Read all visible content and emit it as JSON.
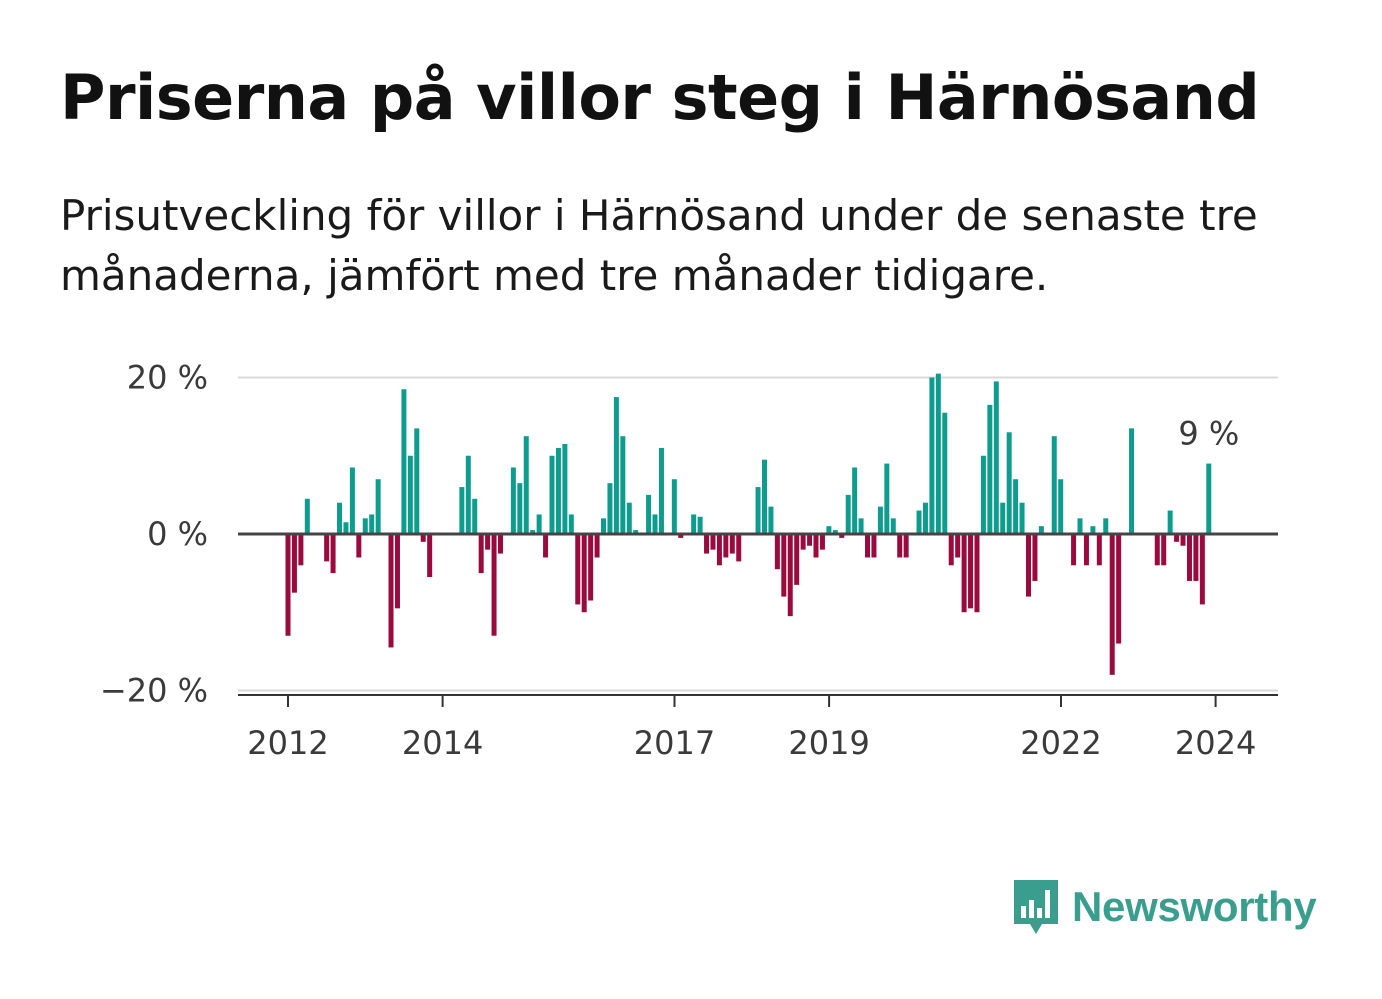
{
  "title": "Priserna på villor steg i Härnösand",
  "subtitle": "Prisutveckling för villor i Härnösand under de senaste tre månaderna, jämfört med tre månader tidigare.",
  "brand": {
    "name": "Newsworthy",
    "color": "#3a9e8e",
    "icon": "newsworthy-logo-icon"
  },
  "chart_data": {
    "type": "bar",
    "ylim": [
      -20,
      20
    ],
    "yticks": [
      {
        "value": 20,
        "label": "20 %"
      },
      {
        "value": 0,
        "label": "0 %"
      },
      {
        "value": -20,
        "label": "−20 %"
      }
    ],
    "xticks": [
      {
        "x": 2012.0,
        "label": "2012"
      },
      {
        "x": 2014.0,
        "label": "2014"
      },
      {
        "x": 2017.0,
        "label": "2017"
      },
      {
        "x": 2019.0,
        "label": "2019"
      },
      {
        "x": 2022.0,
        "label": "2022"
      },
      {
        "x": 2024.0,
        "label": "2024"
      }
    ],
    "x_start": 2012.0,
    "step": 0.0833,
    "colors": {
      "positive": "#0e9c8f",
      "negative": "#9b0a3d"
    },
    "last_value_label": "9 %",
    "values": [
      -13,
      -7.5,
      -4,
      4.5,
      0,
      0,
      -3.5,
      -5,
      4,
      1.5,
      8.5,
      -3,
      2,
      2.5,
      7,
      0,
      -14.5,
      -9.5,
      18.5,
      10,
      13.5,
      -1,
      -5.5,
      0,
      0,
      0,
      0,
      6,
      10,
      4.5,
      -5,
      -2,
      -13,
      -2.5,
      0,
      8.5,
      6.5,
      12.5,
      0.5,
      2.5,
      -3,
      10,
      11,
      11.5,
      2.5,
      -9,
      -10,
      -8.5,
      -3,
      2,
      6.5,
      17.5,
      12.5,
      4,
      0.5,
      0,
      5,
      2.5,
      11,
      0,
      7,
      -0.5,
      0,
      2.5,
      2.2,
      -2.5,
      -2,
      -4,
      -3,
      -2.5,
      -3.5,
      0,
      0,
      6,
      9.5,
      3.5,
      -4.5,
      -8,
      -10.5,
      -6.5,
      -2,
      -1.5,
      -3,
      -2,
      1,
      0.5,
      -0.5,
      5,
      8.5,
      2,
      -3,
      -3,
      3.5,
      9,
      2,
      -3,
      -3,
      0,
      3,
      4,
      20,
      20.5,
      15.5,
      -4,
      -3,
      -10,
      -9.5,
      -10,
      10,
      16.5,
      19.5,
      4,
      13,
      7,
      4,
      -8,
      -6,
      1,
      0,
      12.5,
      7,
      0,
      -4,
      2,
      -4,
      1,
      -4,
      2,
      -18,
      -14,
      0,
      13.5,
      0,
      0,
      0,
      -4,
      -4,
      3,
      -1,
      -1.5,
      -6,
      -6,
      -9,
      9
    ]
  }
}
